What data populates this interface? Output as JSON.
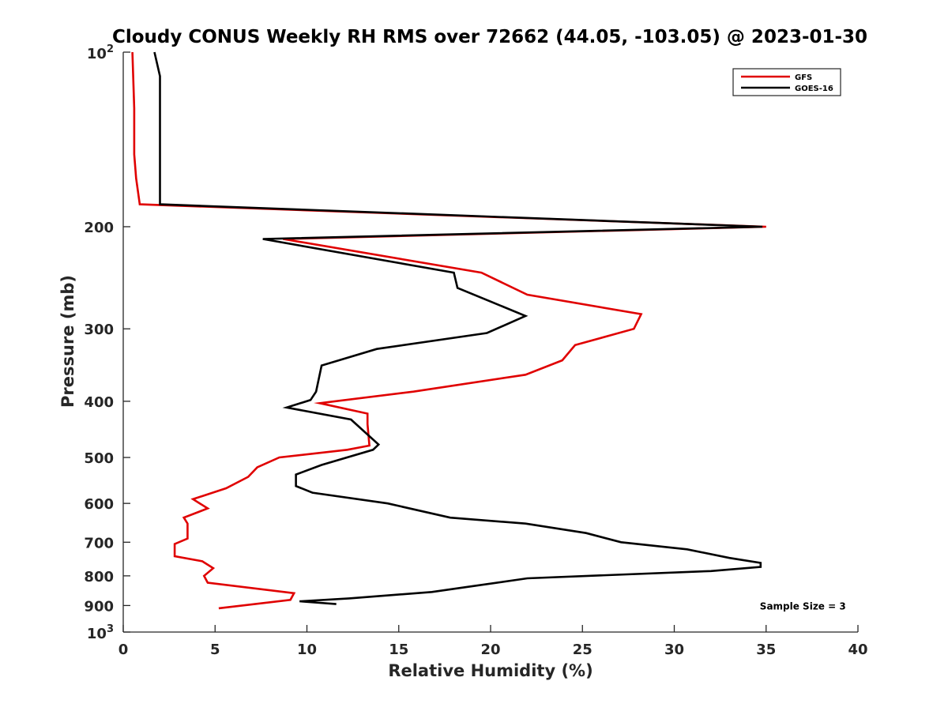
{
  "chart_data": {
    "type": "line",
    "title": "Cloudy CONUS Weekly RH RMS over 72662 (44.05, -103.05) @ 2023-01-30",
    "xlabel": "Relative Humidity (%)",
    "ylabel": "Pressure (mb)",
    "xlim": [
      0,
      40
    ],
    "ylim": [
      100,
      1000
    ],
    "y_scale": "log",
    "y_reversed": true,
    "grid": false,
    "legend_position": "top-right",
    "x_ticks": [
      "0",
      "5",
      "10",
      "15",
      "20",
      "25",
      "30",
      "35",
      "40"
    ],
    "y_ticks": [
      {
        "value": 100,
        "base": "10",
        "exp": "2"
      },
      {
        "value": 200,
        "label": "200"
      },
      {
        "value": 300,
        "label": "300"
      },
      {
        "value": 400,
        "label": "400"
      },
      {
        "value": 500,
        "label": "500"
      },
      {
        "value": 600,
        "label": "600"
      },
      {
        "value": 700,
        "label": "700"
      },
      {
        "value": 800,
        "label": "800"
      },
      {
        "value": 900,
        "label": "900"
      },
      {
        "value": 1000,
        "base": "10",
        "exp": "3"
      }
    ],
    "series": [
      {
        "name": "GFS",
        "color": "#e00000",
        "points": [
          [
            0.5,
            100
          ],
          [
            0.6,
            125
          ],
          [
            0.6,
            150
          ],
          [
            0.7,
            165
          ],
          [
            0.9,
            183
          ],
          [
            35.0,
            200
          ],
          [
            8.7,
            210
          ],
          [
            19.5,
            240
          ],
          [
            22.0,
            262
          ],
          [
            28.2,
            283
          ],
          [
            27.8,
            300
          ],
          [
            24.6,
            320
          ],
          [
            23.9,
            340
          ],
          [
            21.9,
            360
          ],
          [
            15.8,
            385
          ],
          [
            10.7,
            403
          ],
          [
            13.3,
            420
          ],
          [
            13.3,
            438
          ],
          [
            13.4,
            477
          ],
          [
            12.2,
            485
          ],
          [
            8.5,
            500
          ],
          [
            7.3,
            520
          ],
          [
            6.8,
            540
          ],
          [
            5.6,
            565
          ],
          [
            3.8,
            590
          ],
          [
            4.6,
            612
          ],
          [
            3.3,
            635
          ],
          [
            3.5,
            650
          ],
          [
            3.5,
            690
          ],
          [
            2.8,
            705
          ],
          [
            2.8,
            740
          ],
          [
            4.3,
            755
          ],
          [
            4.9,
            776
          ],
          [
            4.4,
            800
          ],
          [
            4.6,
            822
          ],
          [
            9.3,
            857
          ],
          [
            9.1,
            880
          ],
          [
            5.2,
            910
          ]
        ]
      },
      {
        "name": "GOES-16",
        "color": "#000000",
        "points": [
          [
            1.7,
            100
          ],
          [
            2.0,
            110
          ],
          [
            2.0,
            120
          ],
          [
            2.0,
            150
          ],
          [
            2.0,
            183
          ],
          [
            34.8,
            200
          ],
          [
            7.6,
            210
          ],
          [
            18.0,
            240
          ],
          [
            18.2,
            255
          ],
          [
            21.9,
            285
          ],
          [
            19.8,
            305
          ],
          [
            13.8,
            325
          ],
          [
            10.8,
            347
          ],
          [
            10.5,
            385
          ],
          [
            10.2,
            398
          ],
          [
            8.9,
            410
          ],
          [
            12.4,
            430
          ],
          [
            13.9,
            475
          ],
          [
            13.6,
            485
          ],
          [
            10.8,
            515
          ],
          [
            9.4,
            535
          ],
          [
            9.4,
            560
          ],
          [
            10.3,
            575
          ],
          [
            14.4,
            600
          ],
          [
            17.8,
            635
          ],
          [
            21.9,
            650
          ],
          [
            25.2,
            675
          ],
          [
            27.1,
            700
          ],
          [
            30.7,
            720
          ],
          [
            33.0,
            745
          ],
          [
            34.7,
            760
          ],
          [
            34.7,
            772
          ],
          [
            32.0,
            785
          ],
          [
            22.0,
            808
          ],
          [
            18.6,
            837
          ],
          [
            16.8,
            853
          ],
          [
            12.3,
            875
          ],
          [
            9.6,
            885
          ],
          [
            11.6,
            895
          ]
        ]
      }
    ],
    "annotations": [
      {
        "text": "Sample Size = 3",
        "x": 37.0,
        "y": 900
      }
    ]
  }
}
